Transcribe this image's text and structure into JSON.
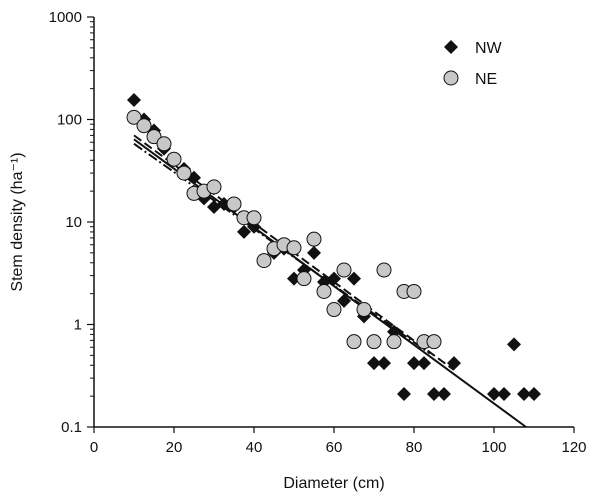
{
  "chart_data": {
    "type": "scatter",
    "xlabel": "Diameter (cm)",
    "ylabel": "Stem density (ha⁻¹)",
    "xlim": [
      0,
      120
    ],
    "ylim": [
      0.1,
      1000
    ],
    "yscale": "log",
    "x_ticks": [
      "0",
      "20",
      "40",
      "60",
      "80",
      "100",
      "120"
    ],
    "y_ticks": [
      "0.1",
      "1",
      "10",
      "100",
      "1000"
    ],
    "grid": false,
    "legend_position": "top-right",
    "series": [
      {
        "name": "NW",
        "marker": "diamond",
        "color": "#111111",
        "points": [
          [
            10,
            155
          ],
          [
            12.5,
            100
          ],
          [
            15,
            78
          ],
          [
            17.5,
            52
          ],
          [
            20,
            40
          ],
          [
            22.5,
            33
          ],
          [
            25,
            27
          ],
          [
            27.5,
            17
          ],
          [
            30,
            14
          ],
          [
            32.5,
            15
          ],
          [
            35,
            14
          ],
          [
            37.5,
            8
          ],
          [
            40,
            9
          ],
          [
            45,
            5
          ],
          [
            47.5,
            5.5
          ],
          [
            50,
            2.8
          ],
          [
            52.5,
            3.4
          ],
          [
            55,
            5
          ],
          [
            57.5,
            2.6
          ],
          [
            60,
            2.8
          ],
          [
            62.5,
            1.7
          ],
          [
            65,
            2.8
          ],
          [
            67.5,
            1.2
          ],
          [
            70,
            0.42
          ],
          [
            72.5,
            0.42
          ],
          [
            75,
            0.85
          ],
          [
            77.5,
            0.21
          ],
          [
            80,
            0.42
          ],
          [
            82.5,
            0.42
          ],
          [
            85,
            0.21
          ],
          [
            87.5,
            0.21
          ],
          [
            90,
            0.42
          ],
          [
            100,
            0.21
          ],
          [
            102.5,
            0.21
          ],
          [
            105,
            0.64
          ],
          [
            107.5,
            0.21
          ],
          [
            110,
            0.21
          ]
        ]
      },
      {
        "name": "NE",
        "marker": "circle",
        "color": "#c8c8c8",
        "points": [
          [
            10,
            105
          ],
          [
            12.5,
            87
          ],
          [
            15,
            68
          ],
          [
            17.5,
            58
          ],
          [
            20,
            41
          ],
          [
            22.5,
            30
          ],
          [
            25,
            19
          ],
          [
            27.5,
            20
          ],
          [
            30,
            22
          ],
          [
            35,
            15
          ],
          [
            37.5,
            11
          ],
          [
            40,
            11
          ],
          [
            42.5,
            4.2
          ],
          [
            45,
            5.5
          ],
          [
            47.5,
            6
          ],
          [
            50,
            5.6
          ],
          [
            52.5,
            2.8
          ],
          [
            55,
            6.8
          ],
          [
            57.5,
            2.1
          ],
          [
            60,
            1.4
          ],
          [
            62.5,
            3.4
          ],
          [
            65,
            0.68
          ],
          [
            67.5,
            1.4
          ],
          [
            70,
            0.68
          ],
          [
            72.5,
            3.4
          ],
          [
            75,
            0.68
          ],
          [
            77.5,
            2.1
          ],
          [
            80,
            2.1
          ],
          [
            82.5,
            0.68
          ],
          [
            85,
            0.68
          ]
        ]
      }
    ],
    "fit_lines": [
      {
        "style": "solid",
        "from": [
          10,
          64
        ],
        "to": [
          108,
          0.1
        ]
      },
      {
        "style": "dashed",
        "from": [
          10,
          70
        ],
        "to": [
          90,
          0.36
        ]
      },
      {
        "style": "dashdot",
        "from": [
          10,
          58
        ],
        "to": [
          84,
          0.52
        ]
      }
    ]
  }
}
